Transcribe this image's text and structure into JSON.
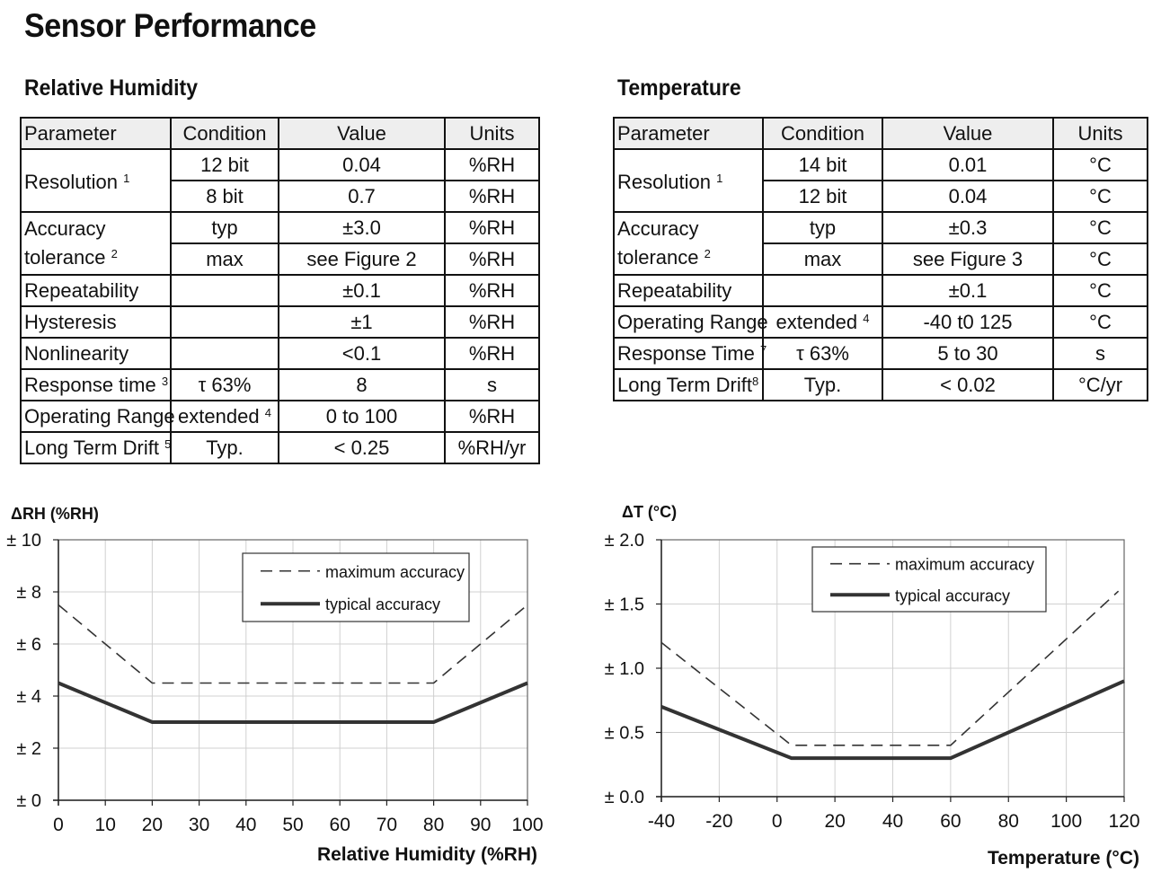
{
  "title": "Sensor Performance",
  "humidity": {
    "heading": "Relative Humidity",
    "headers": [
      "Parameter",
      "Condition",
      "Value",
      "Units"
    ],
    "resolution_label": "Resolution",
    "resolution_note": "1",
    "res_12_cond": "12 bit",
    "res_12_val": "0.04",
    "res_12_unit": "%RH",
    "res_8_cond": "8 bit",
    "res_8_val": "0.7",
    "res_8_unit": "%RH",
    "accuracy_label_1": "Accuracy",
    "accuracy_label_2": "tolerance",
    "accuracy_note": "2",
    "acc_typ_cond": "typ",
    "acc_typ_val": "±3.0",
    "acc_typ_unit": "%RH",
    "acc_max_cond": "max",
    "acc_max_val": "see Figure 2",
    "acc_max_unit": "%RH",
    "repeat_label": "Repeatability",
    "repeat_val": "±0.1",
    "repeat_unit": "%RH",
    "hyst_label": "Hysteresis",
    "hyst_val": "±1",
    "hyst_unit": "%RH",
    "nonlin_label": "Nonlinearity",
    "nonlin_val": "<0.1",
    "nonlin_unit": "%RH",
    "resp_label": "Response time",
    "resp_note": "3",
    "resp_cond": "τ 63%",
    "resp_val": "8",
    "resp_unit": "s",
    "range_label": "Operating Range",
    "range_cond": "extended",
    "range_note": "4",
    "range_val": "0 to 100",
    "range_unit": "%RH",
    "drift_label": "Long Term Drift",
    "drift_note": "5",
    "drift_cond": "Typ.",
    "drift_val": "< 0.25",
    "drift_unit": "%RH/yr"
  },
  "temperature": {
    "heading": "Temperature",
    "headers": [
      "Parameter",
      "Condition",
      "Value",
      "Units"
    ],
    "resolution_label": "Resolution",
    "resolution_note": "1",
    "res_14_cond": "14 bit",
    "res_14_val": "0.01",
    "res_14_unit": "°C",
    "res_12_cond": "12 bit",
    "res_12_val": "0.04",
    "res_12_unit": "°C",
    "accuracy_label_1": "Accuracy",
    "accuracy_label_2": "tolerance",
    "accuracy_note": "2",
    "acc_typ_cond": "typ",
    "acc_typ_val": "±0.3",
    "acc_typ_unit": "°C",
    "acc_max_cond": "max",
    "acc_max_val": "see Figure 3",
    "acc_max_unit": "°C",
    "repeat_label": "Repeatability",
    "repeat_val": "±0.1",
    "repeat_unit": "°C",
    "range_label": "Operating Range",
    "range_cond": "extended",
    "range_note": "4",
    "range_val": "-40 t0 125",
    "range_unit": "°C",
    "resp_label": "Response Time",
    "resp_note": "7",
    "resp_cond": "τ 63%",
    "resp_val": "5 to 30",
    "resp_unit": "s",
    "drift_label": "Long Term Drift",
    "drift_note": "8",
    "drift_cond": "Typ.",
    "drift_val": "< 0.02",
    "drift_unit": "°C/yr"
  },
  "chart_data": [
    {
      "type": "line",
      "title": "",
      "ylabel": "ΔRH (%RH)",
      "xlabel": "Relative Humidity (%RH)",
      "xlim": [
        0,
        100
      ],
      "ylim": [
        0,
        10
      ],
      "xticks": [
        0,
        10,
        20,
        30,
        40,
        50,
        60,
        70,
        80,
        90,
        100
      ],
      "xtick_labels": [
        "0",
        "10",
        "20",
        "30",
        "40",
        "50",
        "60",
        "70",
        "80",
        "90",
        "100"
      ],
      "yticks": [
        0,
        2,
        4,
        6,
        8,
        10
      ],
      "ytick_labels": [
        "± 0",
        "± 2",
        "± 4",
        "± 6",
        "± 8",
        "± 10"
      ],
      "grid": true,
      "legend_position": "top-right",
      "series": [
        {
          "name": "maximum accuracy",
          "style": "dashed",
          "x": [
            0,
            20,
            80,
            100
          ],
          "y": [
            7.5,
            4.5,
            4.5,
            7.5
          ]
        },
        {
          "name": "typical accuracy",
          "style": "solid",
          "x": [
            0,
            20,
            80,
            100
          ],
          "y": [
            4.5,
            3,
            3,
            4.5
          ]
        }
      ]
    },
    {
      "type": "line",
      "title": "",
      "ylabel": "ΔT (°C)",
      "xlabel": "Temperature (°C)",
      "xlim": [
        -40,
        120
      ],
      "ylim": [
        0,
        2
      ],
      "xticks": [
        -40,
        -20,
        0,
        20,
        40,
        60,
        80,
        100,
        120
      ],
      "xtick_labels": [
        "-40",
        "-20",
        "0",
        "20",
        "40",
        "60",
        "80",
        "100",
        "120"
      ],
      "yticks": [
        0,
        0.5,
        1,
        1.5,
        2
      ],
      "ytick_labels": [
        "± 0.0",
        "± 0.5",
        "± 1.0",
        "± 1.5",
        "± 2.0"
      ],
      "grid": true,
      "legend_position": "top-right",
      "series": [
        {
          "name": "maximum accuracy",
          "style": "dashed",
          "x": [
            -40,
            5,
            60,
            118
          ],
          "y": [
            1.2,
            0.4,
            0.4,
            1.6
          ]
        },
        {
          "name": "typical accuracy",
          "style": "solid",
          "x": [
            -40,
            5,
            60,
            120
          ],
          "y": [
            0.7,
            0.3,
            0.3,
            0.9
          ]
        }
      ]
    }
  ]
}
